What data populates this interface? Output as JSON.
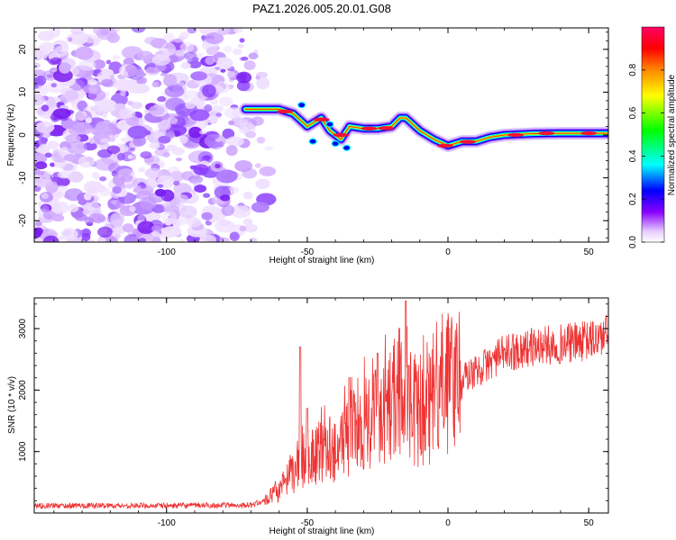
{
  "chart_data": [
    {
      "type": "heatmap",
      "title": "PAZ1.2026.005.20.01.G08",
      "xlabel": "Height of straight line (km)",
      "ylabel": "Frequency (Hz)",
      "xlim": [
        -147,
        57
      ],
      "ylim": [
        -25,
        25
      ],
      "x_ticks": [
        -100,
        -50,
        0,
        50
      ],
      "y_ticks": [
        -20,
        -10,
        0,
        10,
        20
      ],
      "colorbar": {
        "label": "Normalized spectral amplitude",
        "range": [
          0,
          1
        ],
        "ticks": [
          "0.0",
          "0.2",
          "0.4",
          "0.6",
          "0.8"
        ],
        "colors": [
          "#ffffff",
          "#e6ccff",
          "#8800ff",
          "#0000ff",
          "#00ffff",
          "#00ff00",
          "#ffff00",
          "#ff8800",
          "#ff0000",
          "#ff0066"
        ]
      },
      "ridge": {
        "x": [
          -72,
          -60,
          -55,
          -50,
          -45,
          -42,
          -38,
          -35,
          -30,
          -25,
          -20,
          -17,
          -15,
          -10,
          -5,
          0,
          5,
          10,
          15,
          20,
          30,
          40,
          57
        ],
        "frequency": [
          6,
          6,
          5,
          2,
          4,
          1,
          -1,
          2,
          1.5,
          1.5,
          2,
          4,
          4,
          1,
          -1,
          -2.5,
          -1.5,
          -1.5,
          -0.5,
          0,
          0.3,
          0.4,
          0.4
        ]
      },
      "noise_region_x": [
        -147,
        -63
      ]
    },
    {
      "type": "line",
      "title": "",
      "xlabel": "Height of straight line (km)",
      "ylabel": "SNR (10 * v/v)",
      "xlim": [
        -147,
        57
      ],
      "ylim": [
        0,
        3500
      ],
      "x_ticks": [
        -100,
        -50,
        0,
        50
      ],
      "y_ticks": [
        1000,
        2000,
        3000
      ],
      "line_color": "#ee3333",
      "envelope": {
        "x": [
          -147,
          -100,
          -70,
          -65,
          -60,
          -55,
          -50,
          -45,
          -40,
          -35,
          -30,
          -25,
          -20,
          -15,
          -10,
          -5,
          0,
          5,
          10,
          15,
          20,
          30,
          40,
          50,
          57
        ],
        "y": [
          120,
          120,
          130,
          200,
          350,
          650,
          900,
          1000,
          1050,
          1300,
          1500,
          1650,
          1850,
          1800,
          1600,
          1750,
          2100,
          2200,
          2300,
          2450,
          2600,
          2700,
          2750,
          2800,
          2900
        ]
      },
      "spikes": [
        {
          "x": -52.5,
          "y": 2700
        },
        {
          "x": -50,
          "y": 1700
        },
        {
          "x": -35,
          "y": 2200
        },
        {
          "x": -25,
          "y": 2600
        },
        {
          "x": -15,
          "y": 3450
        },
        {
          "x": -14,
          "y": 2400
        }
      ]
    }
  ]
}
